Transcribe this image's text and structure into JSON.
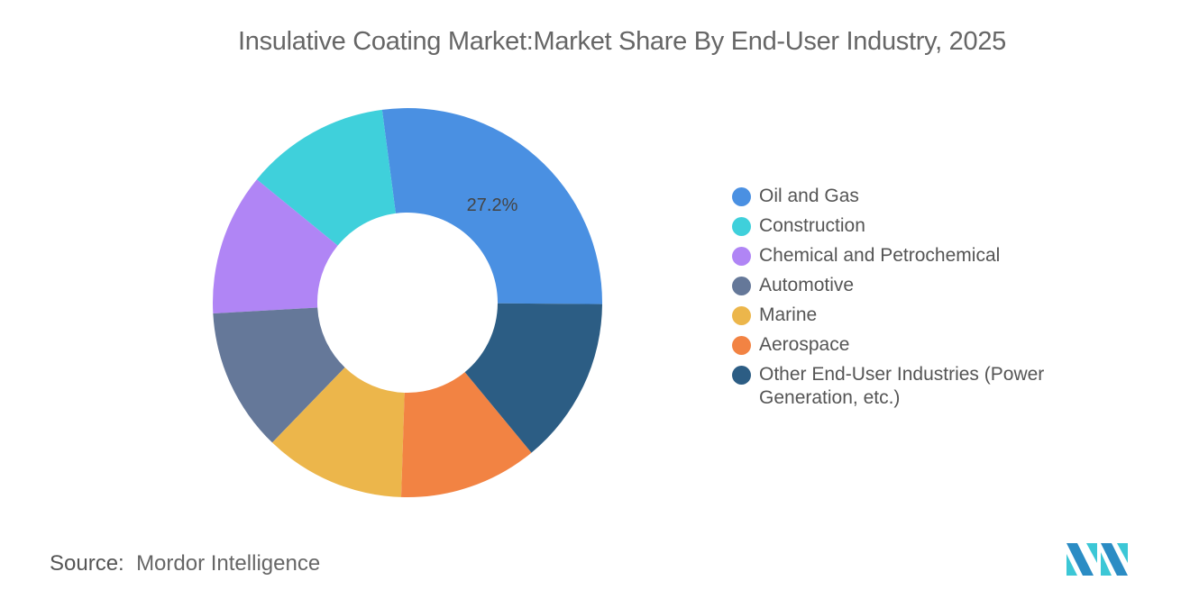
{
  "chart_data": {
    "type": "pie",
    "subtype": "donut",
    "title": "Insulative Coating Market:Market Share By End-User Industry, 2025",
    "categories": [
      "Oil and Gas",
      "Construction",
      "Chemical and Petrochemical",
      "Automotive",
      "Marine",
      "Aerospace",
      "Other End-User Industries (Power Generation, etc.)"
    ],
    "values": [
      27.2,
      12.0,
      11.8,
      11.9,
      11.7,
      11.5,
      13.9
    ],
    "data_labels": {
      "Oil and Gas": "27.2%"
    },
    "colors": [
      "#4a90e2",
      "#3fd0db",
      "#b085f5",
      "#657899",
      "#ecb64b",
      "#f28343",
      "#2c5d84"
    ],
    "legend_position": "right"
  },
  "source": {
    "label": "Source:",
    "value": "Mordor Intelligence"
  }
}
